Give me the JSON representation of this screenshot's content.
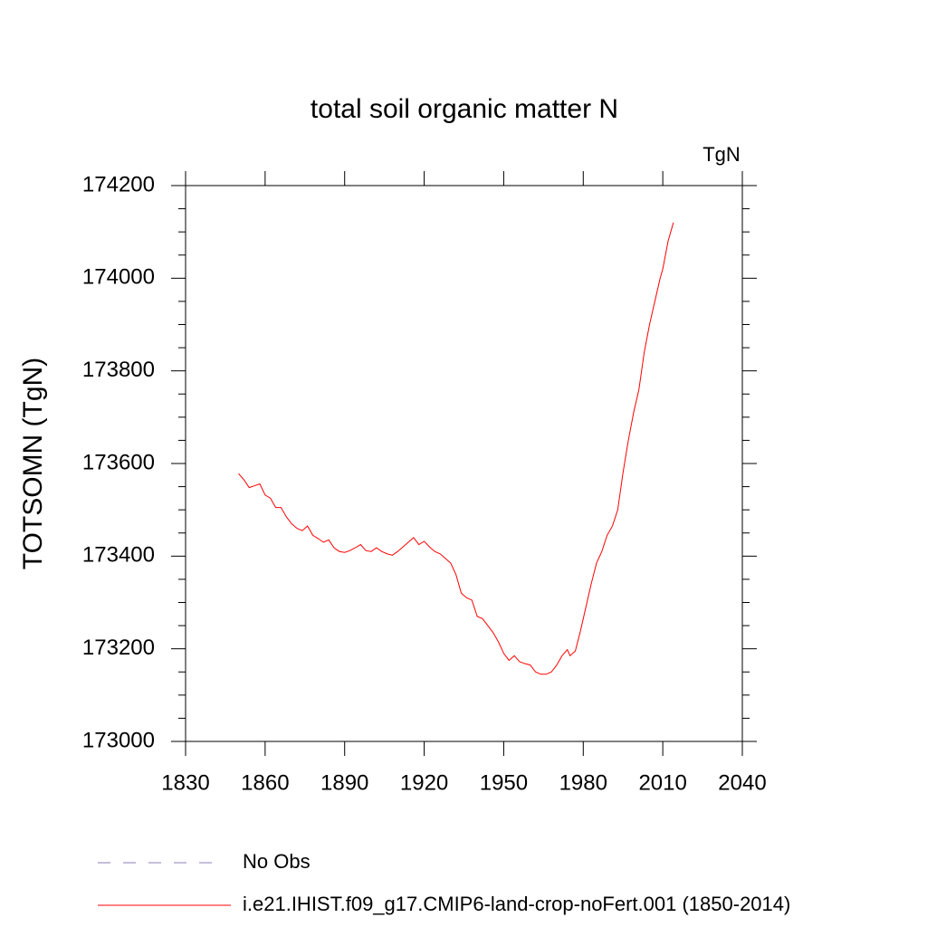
{
  "chart_data": {
    "type": "line",
    "title": "total soil organic matter N",
    "units": "TgN",
    "y_label": "TOTSOMN  (TgN)",
    "x": [
      1850,
      1852,
      1854,
      1856,
      1858,
      1860,
      1862,
      1864,
      1866,
      1868,
      1870,
      1872,
      1874,
      1876,
      1878,
      1880,
      1882,
      1884,
      1886,
      1888,
      1890,
      1892,
      1894,
      1896,
      1898,
      1900,
      1902,
      1904,
      1906,
      1908,
      1910,
      1912,
      1914,
      1916,
      1918,
      1920,
      1922,
      1924,
      1926,
      1928,
      1930,
      1932,
      1934,
      1936,
      1938,
      1940,
      1942,
      1944,
      1946,
      1948,
      1950,
      1952,
      1954,
      1956,
      1958,
      1960,
      1962,
      1964,
      1966,
      1968,
      1970,
      1972,
      1974,
      1975,
      1977,
      1979,
      1981,
      1983,
      1985,
      1987,
      1989,
      1991,
      1993,
      1995,
      1997,
      1999,
      2001,
      2003,
      2005,
      2007,
      2009,
      2010,
      2012,
      2014
    ],
    "series": [
      {
        "name": "i.e21.IHIST.f09_g17.CMIP6-land-crop-noFert.001 (1850-2014)",
        "color": "#ff0000",
        "values": [
          173578,
          173565,
          173548,
          173552,
          173556,
          173532,
          173525,
          173505,
          173505,
          173485,
          173470,
          173460,
          173455,
          173465,
          173445,
          173438,
          173430,
          173435,
          173418,
          173410,
          173408,
          173412,
          173418,
          173425,
          173412,
          173410,
          173418,
          173410,
          173405,
          173402,
          173410,
          173420,
          173430,
          173440,
          173425,
          173432,
          173420,
          173410,
          173405,
          173395,
          173385,
          173360,
          173320,
          173310,
          173305,
          173270,
          173265,
          173250,
          173235,
          173215,
          173190,
          173175,
          173185,
          173172,
          173168,
          173165,
          173150,
          173145,
          173145,
          173150,
          173165,
          173185,
          173198,
          173185,
          173195,
          173240,
          173290,
          173340,
          173385,
          173410,
          173445,
          173465,
          173500,
          173580,
          173650,
          173710,
          173760,
          173840,
          173900,
          173950,
          174000,
          174020,
          174080,
          174120
        ]
      }
    ],
    "legend": [
      {
        "name": "No Obs",
        "color": "#8c7bb5",
        "dashed": true
      }
    ],
    "xlim": [
      1830,
      2040
    ],
    "xticks": [
      1830,
      1860,
      1890,
      1920,
      1950,
      1980,
      2010,
      2040
    ],
    "ylim": [
      173000,
      174200
    ],
    "yticks": [
      173000,
      173200,
      173400,
      173600,
      173800,
      174000,
      174200
    ],
    "yminorticks": [
      173050,
      173100,
      173150,
      173250,
      173300,
      173350,
      173450,
      173500,
      173550,
      173650,
      173700,
      173750,
      173850,
      173900,
      173950,
      174050,
      174100,
      174150
    ]
  }
}
